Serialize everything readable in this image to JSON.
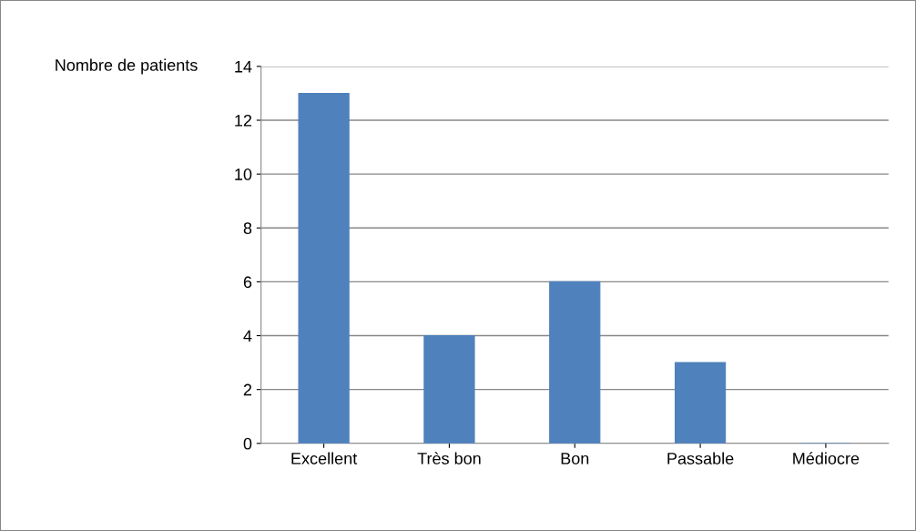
{
  "chart_data": {
    "type": "bar",
    "ylabel": "Nombre de patients",
    "categories": [
      "Excellent",
      "Très bon",
      "Bon",
      "Passable",
      "Médiocre"
    ],
    "values": [
      13,
      4,
      6,
      3,
      0
    ],
    "color": "#4f81bd",
    "ylim": [
      0,
      14
    ],
    "yticks": [
      0,
      2,
      4,
      6,
      8,
      10,
      12,
      14
    ],
    "grid": "y"
  }
}
